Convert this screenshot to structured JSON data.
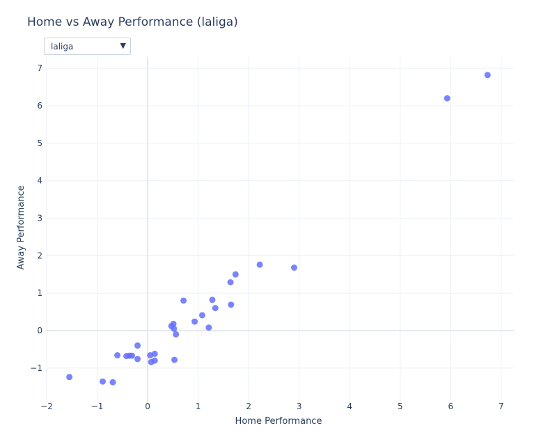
{
  "chart_data": {
    "type": "scatter",
    "title": "Home vs Away Performance (laliga)",
    "xlabel": "Home Performance",
    "ylabel": "Away Performance",
    "xlim": [
      -2,
      7.25
    ],
    "ylim": [
      -1.95,
      7.3
    ],
    "xticks": [
      -2,
      -1,
      0,
      1,
      2,
      3,
      4,
      5,
      6,
      7
    ],
    "yticks": [
      -1,
      0,
      1,
      2,
      3,
      4,
      5,
      6,
      7
    ],
    "xtick_labels": [
      "−2",
      "−1",
      "0",
      "1",
      "2",
      "3",
      "4",
      "5",
      "6",
      "7"
    ],
    "ytick_labels": [
      "−1",
      "0",
      "1",
      "2",
      "3",
      "4",
      "5",
      "6",
      "7"
    ],
    "grid": true,
    "marker_color": "#636efa",
    "points": [
      {
        "x": -1.55,
        "y": -1.24
      },
      {
        "x": -0.89,
        "y": -1.36
      },
      {
        "x": -0.69,
        "y": -1.38
      },
      {
        "x": -0.6,
        "y": -0.66
      },
      {
        "x": -0.42,
        "y": -0.68
      },
      {
        "x": -0.36,
        "y": -0.67
      },
      {
        "x": -0.31,
        "y": -0.67
      },
      {
        "x": -0.2,
        "y": -0.4
      },
      {
        "x": -0.2,
        "y": -0.76
      },
      {
        "x": 0.05,
        "y": -0.66
      },
      {
        "x": 0.07,
        "y": -0.84
      },
      {
        "x": 0.14,
        "y": -0.62
      },
      {
        "x": 0.14,
        "y": -0.8
      },
      {
        "x": 0.47,
        "y": 0.12
      },
      {
        "x": 0.51,
        "y": 0.18
      },
      {
        "x": 0.52,
        "y": 0.05
      },
      {
        "x": 0.53,
        "y": -0.78
      },
      {
        "x": 0.56,
        "y": -0.1
      },
      {
        "x": 0.71,
        "y": 0.8
      },
      {
        "x": 0.93,
        "y": 0.24
      },
      {
        "x": 1.08,
        "y": 0.41
      },
      {
        "x": 1.21,
        "y": 0.08
      },
      {
        "x": 1.28,
        "y": 0.82
      },
      {
        "x": 1.34,
        "y": 0.6
      },
      {
        "x": 1.64,
        "y": 1.29
      },
      {
        "x": 1.65,
        "y": 0.69
      },
      {
        "x": 1.74,
        "y": 1.5
      },
      {
        "x": 2.22,
        "y": 1.76
      },
      {
        "x": 2.9,
        "y": 1.68
      },
      {
        "x": 5.93,
        "y": 6.2
      },
      {
        "x": 6.73,
        "y": 6.82
      }
    ]
  },
  "controls": {
    "dropdown_value": "laliga",
    "dropdown_arrow": "▼"
  }
}
